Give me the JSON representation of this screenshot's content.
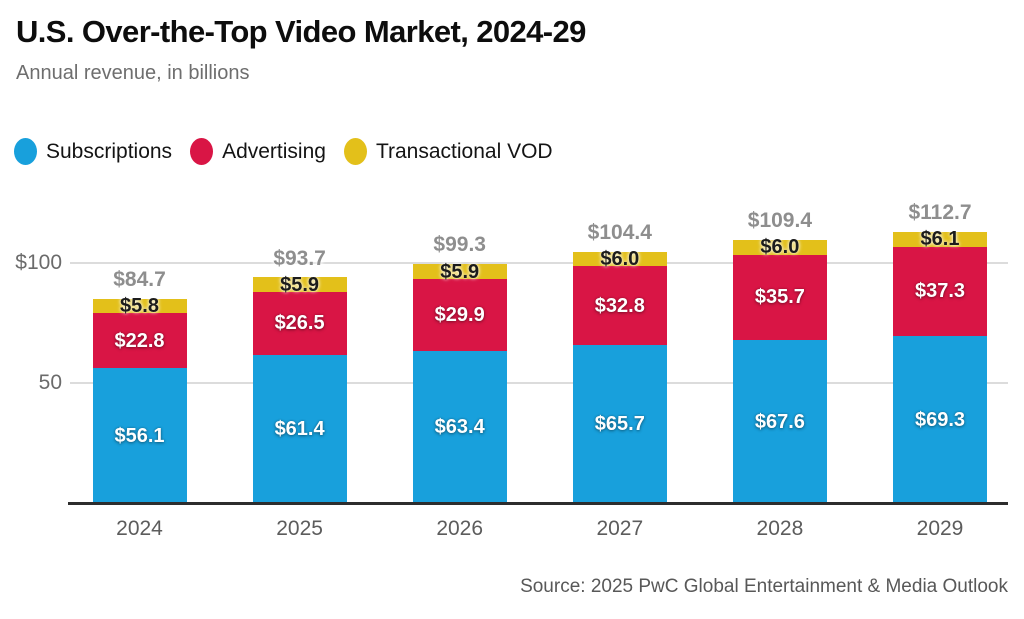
{
  "header": {
    "title": "U.S. Over-the-Top Video Market, 2024-29",
    "subtitle": "Annual revenue, in billions"
  },
  "legend": [
    {
      "label": "Subscriptions",
      "color": "#18A0DC"
    },
    {
      "label": "Advertising",
      "color": "#D91545"
    },
    {
      "label": "Transactional VOD",
      "color": "#E3C01A"
    }
  ],
  "chart_data": {
    "type": "bar",
    "stacked": true,
    "title": "U.S. Over-the-Top Video Market, 2024-29",
    "subtitle": "Annual revenue, in billions",
    "categories": [
      "2024",
      "2025",
      "2026",
      "2027",
      "2028",
      "2029"
    ],
    "series": [
      {
        "name": "Subscriptions",
        "color": "#18A0DC",
        "label_style": "light",
        "values": [
          56.1,
          61.4,
          63.4,
          65.7,
          67.6,
          69.3
        ],
        "labels": [
          "$56.1",
          "$61.4",
          "$63.4",
          "$65.7",
          "$67.6",
          "$69.3"
        ]
      },
      {
        "name": "Advertising",
        "color": "#D91545",
        "label_style": "light",
        "values": [
          22.8,
          26.5,
          29.9,
          32.8,
          35.7,
          37.3
        ],
        "labels": [
          "$22.8",
          "$26.5",
          "$29.9",
          "$32.8",
          "$35.7",
          "$37.3"
        ]
      },
      {
        "name": "Transactional VOD",
        "color": "#E3C01A",
        "label_style": "dark",
        "values": [
          5.8,
          5.9,
          5.9,
          6.0,
          6.0,
          6.1
        ],
        "labels": [
          "$5.8",
          "$5.9",
          "$5.9",
          "$6.0",
          "$6.0",
          "$6.1"
        ]
      }
    ],
    "totals": [
      84.7,
      93.7,
      99.3,
      104.4,
      109.4,
      112.7
    ],
    "total_labels": [
      "$84.7",
      "$93.7",
      "$99.3",
      "$104.4",
      "$109.4",
      "$112.7"
    ],
    "y_ticks": [
      {
        "value": 100,
        "label": "$100"
      },
      {
        "value": 50,
        "label": "50"
      }
    ],
    "ylim": [
      0,
      125
    ],
    "grid": true,
    "legend_position": "top-left"
  },
  "source": "Source: 2025 PwC Global Entertainment & Media Outlook"
}
